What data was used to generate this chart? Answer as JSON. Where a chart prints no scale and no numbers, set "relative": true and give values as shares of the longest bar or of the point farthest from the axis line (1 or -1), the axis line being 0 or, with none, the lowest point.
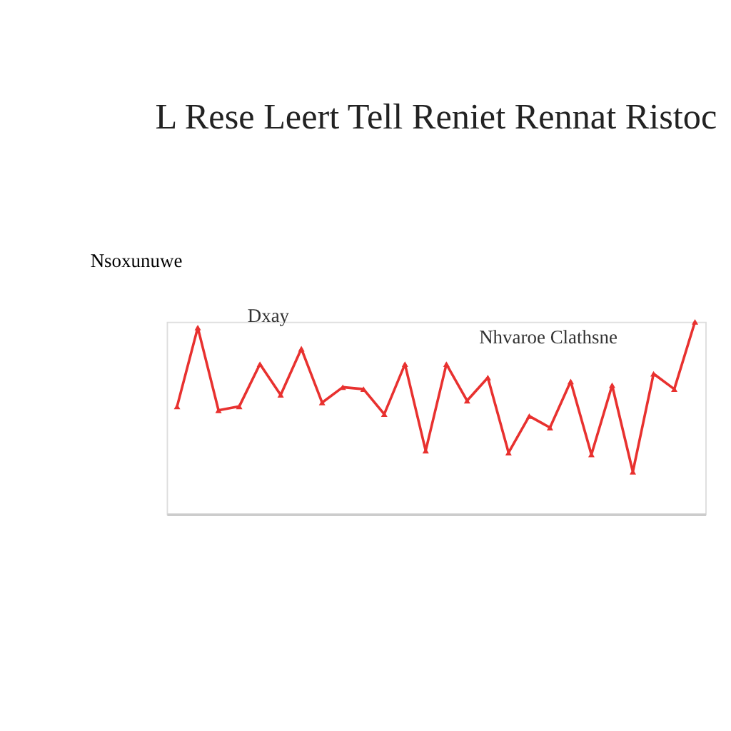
{
  "chart_data": {
    "type": "line",
    "title": "L Rese Leert Tell Reniet Rennat Ristoc",
    "ylabel": "Nsoxunuwe",
    "relative": true,
    "categories": [
      null,
      null,
      null,
      null,
      null,
      null,
      null,
      null,
      null,
      null,
      null,
      null,
      null,
      null,
      null,
      null,
      null,
      null,
      null,
      null,
      null,
      null,
      null,
      null,
      null,
      null
    ],
    "series": [
      {
        "color": "#e8312f",
        "values": [
          0.56,
          0.97,
          0.54,
          0.56,
          0.78,
          0.62,
          0.86,
          0.58,
          0.66,
          0.65,
          0.52,
          0.78,
          0.33,
          0.78,
          0.59,
          0.71,
          0.32,
          0.51,
          0.45,
          0.69,
          0.31,
          0.67,
          0.22,
          0.73,
          0.65,
          1
        ]
      }
    ],
    "annotations": [
      "Dxay",
      "Nhvaroe Clathsne"
    ],
    "marker": "triangle",
    "grid": false,
    "legend": false
  }
}
